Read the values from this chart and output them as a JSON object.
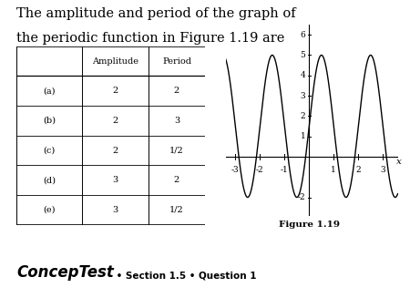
{
  "title_line1": "The amplitude and period of the graph of",
  "title_line2": "the periodic function in Figure 1.19 are",
  "table_headers": [
    "",
    "Amplitude",
    "Period"
  ],
  "table_rows": [
    [
      "(a)",
      "2",
      "2"
    ],
    [
      "(b)",
      "2",
      "3"
    ],
    [
      "(c)",
      "2",
      "1/2"
    ],
    [
      "(d)",
      "3",
      "2"
    ],
    [
      "(e)",
      "3",
      "1/2"
    ]
  ],
  "figure_label": "Figure 1.19",
  "conceptest_label": "ConcepTest",
  "section_label": " • Section 1.5 • Question 1",
  "graph_amplitude": 3.5,
  "graph_midline": 1.5,
  "graph_period": 2.0,
  "graph_xlim": [
    -3.4,
    3.6
  ],
  "graph_ylim": [
    -2.9,
    6.5
  ],
  "graph_xticks": [
    -3,
    -2,
    -1,
    1,
    2,
    3
  ],
  "graph_yticks": [
    -2,
    1,
    2,
    3,
    4,
    5,
    6
  ],
  "background_color": "#ffffff",
  "text_color": "#000000"
}
